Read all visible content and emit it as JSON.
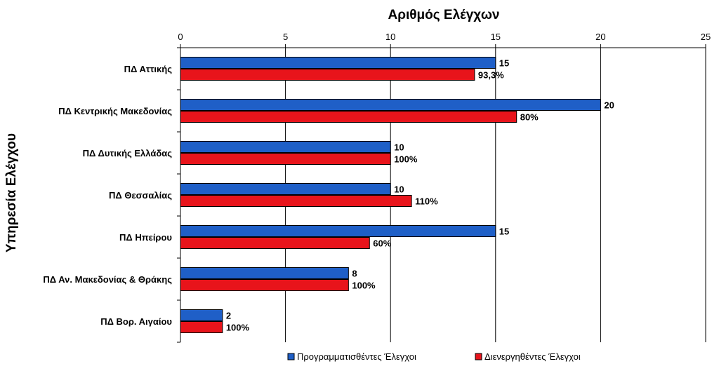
{
  "chart_data": {
    "type": "bar",
    "orientation": "horizontal",
    "title": "",
    "xlabel": "Αριθμός Ελέγχων",
    "ylabel": "Υπηρεσία Ελέγχου",
    "xlim": [
      0,
      25
    ],
    "x_ticks": [
      "0",
      "5",
      "10",
      "15",
      "20",
      "25"
    ],
    "grid": "vertical",
    "legend_position": "bottom",
    "categories": [
      "ΠΔ Αττικής",
      "ΠΔ Κεντρικής Μακεδονίας",
      "ΠΔ Δυτικής Ελλάδας",
      "ΠΔ Θεσσαλίας",
      "ΠΔ Ηπείρου",
      "ΠΔ Αν. Μακεδονίας & Θράκης",
      "ΠΔ Βορ. Αιγαίου"
    ],
    "series": [
      {
        "name": "Προγραμματισθέντες Έλεγχοι",
        "color": "#1f5fc7",
        "values": [
          15,
          20,
          10,
          10,
          15,
          8,
          2
        ],
        "labels": [
          "15",
          "20",
          "10",
          "10",
          "15",
          "8",
          "2"
        ]
      },
      {
        "name": "Διενεργηθέντες Έλεγχοι",
        "color": "#e8141b",
        "values": [
          14,
          16,
          10,
          11,
          9,
          8,
          2
        ],
        "labels": [
          "93,3%",
          "80%",
          "100%",
          "110%",
          "60%",
          "100%",
          "100%"
        ]
      }
    ]
  }
}
